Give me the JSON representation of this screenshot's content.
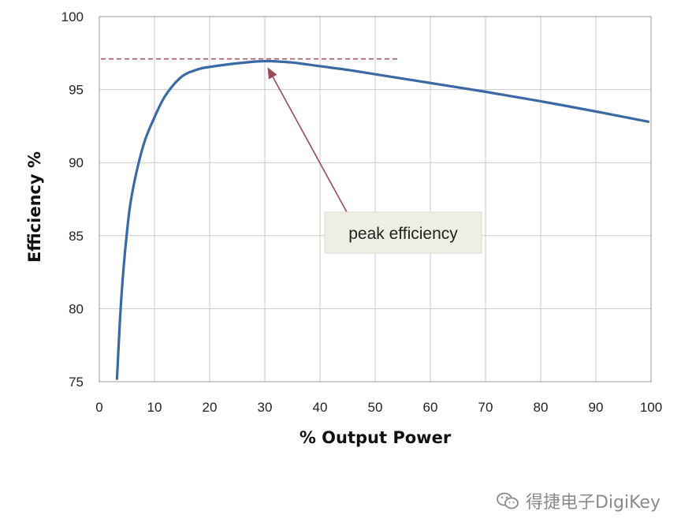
{
  "chart_data": {
    "type": "line",
    "xlabel": "% Output Power",
    "ylabel": "Efficiency %",
    "xlim": [
      0,
      100
    ],
    "ylim": [
      75,
      100
    ],
    "xticks": [
      0,
      10,
      20,
      30,
      40,
      50,
      60,
      70,
      80,
      90,
      100
    ],
    "yticks": [
      75,
      80,
      85,
      90,
      95,
      100
    ],
    "grid": true,
    "series": [
      {
        "color": "#3a6aa6",
        "x": [
          3.2,
          4,
          5,
          6,
          8,
          10,
          12,
          15,
          18,
          20,
          25,
          30,
          35,
          40,
          45,
          50,
          60,
          70,
          80,
          90,
          99.5
        ],
        "y": [
          75.2,
          80.8,
          85.2,
          88.0,
          91.2,
          93.1,
          94.6,
          95.9,
          96.4,
          96.55,
          96.8,
          96.95,
          96.85,
          96.6,
          96.35,
          96.05,
          95.45,
          94.85,
          94.2,
          93.5,
          92.8
        ]
      }
    ],
    "reference_line": {
      "y": 97.1,
      "x_start": 0,
      "x_end": 54,
      "color": "#a85a6a",
      "style": "dashed"
    },
    "annotation": {
      "text": "peak efficiency",
      "point_x": 30.5,
      "point_y": 96.85,
      "arrow_color": "#9b4a57"
    }
  },
  "watermark": {
    "text": "得捷电子DigiKey"
  }
}
